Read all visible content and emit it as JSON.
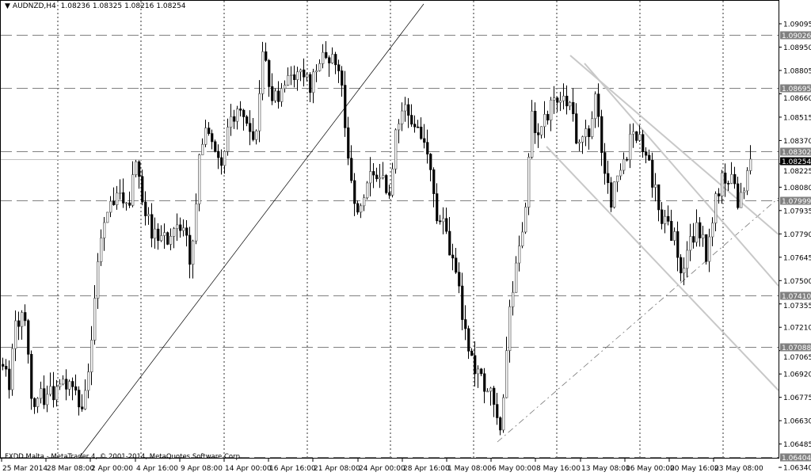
{
  "header": {
    "symbol": "AUDNZD,H4",
    "open": "1.08236",
    "high": "1.08325",
    "low": "1.08216",
    "close": "1.08254"
  },
  "footer": "FXDD Malta - MetaTrader 4, © 2001-2014, MetaQuotes Software Corp.",
  "colors": {
    "background": "#ffffff",
    "candle_bear": "#000000",
    "candle_bull": "#ffffff",
    "level_line": "#808080",
    "trendline_grey": "#c8c8c8",
    "current_price": "#000000"
  },
  "chart_data": {
    "type": "candlestick",
    "title": "AUDNZD,H4",
    "ylim": [
      1.0634,
      1.09095
    ],
    "y_ticks": [
      "1.09095",
      "1.08950",
      "1.08805",
      "1.08660",
      "1.08515",
      "1.08370",
      "1.08225",
      "1.08080",
      "1.07935",
      "1.07790",
      "1.07645",
      "1.07500",
      "1.07355",
      "1.07210",
      "1.07065",
      "1.06920",
      "1.06775",
      "1.06630",
      "1.06485",
      "1.06340"
    ],
    "x_ticks": [
      "25 Mar 2014",
      "28 Mar 08:00",
      "2 Apr 00:00",
      "4 Apr 16:00",
      "9 Apr 08:00",
      "14 Apr 00:00",
      "16 Apr 16:00",
      "21 Apr 08:00",
      "24 Apr 00:00",
      "28 Apr 16:00",
      "1 May 08:00",
      "6 May 00:00",
      "8 May 16:00",
      "13 May 08:00",
      "16 May 00:00",
      "20 May 16:00",
      "23 May 08:00"
    ],
    "grid": "vertical dotted",
    "approx_close_path": [
      1.0698,
      1.0688,
      1.0727,
      1.0727,
      1.0668,
      1.0678,
      1.0678,
      1.0683,
      1.0683,
      1.0688,
      1.0668,
      1.0688,
      1.0747,
      1.0791,
      1.0801,
      1.0806,
      1.0796,
      1.0821,
      1.0796,
      1.0782,
      1.0772,
      1.0777,
      1.0777,
      1.0786,
      1.0757,
      1.0831,
      1.0841,
      1.0831,
      1.0826,
      1.085,
      1.0855,
      1.0846,
      1.0831,
      1.0895,
      1.0865,
      1.086,
      1.0875,
      1.087,
      1.088,
      1.087,
      1.088,
      1.089,
      1.0885,
      1.087,
      1.0811,
      1.0791,
      1.0806,
      1.0821,
      1.0811,
      1.0806,
      1.085,
      1.0855,
      1.0841,
      1.0841,
      1.0831,
      1.0786,
      1.0782,
      1.0762,
      1.0737,
      1.0708,
      1.0693,
      1.0683,
      1.0678,
      1.0653,
      1.0727,
      1.0757,
      1.0782,
      1.085,
      1.0841,
      1.0855,
      1.086,
      1.0865,
      1.0855,
      1.0831,
      1.0841,
      1.086,
      1.0826,
      1.0801,
      1.0821,
      1.0831,
      1.0846,
      1.0831,
      1.0816,
      1.0796,
      1.0782,
      1.0777,
      1.0752,
      1.0777,
      1.0782,
      1.0767,
      1.0796,
      1.0816,
      1.0816,
      1.0801,
      1.0811,
      1.08254
    ],
    "horizontal_levels": [
      "1.09026",
      "1.08695",
      "1.08302",
      "1.07999",
      "1.07410",
      "1.07088",
      "1.06404"
    ],
    "current_price": "1.08254"
  }
}
